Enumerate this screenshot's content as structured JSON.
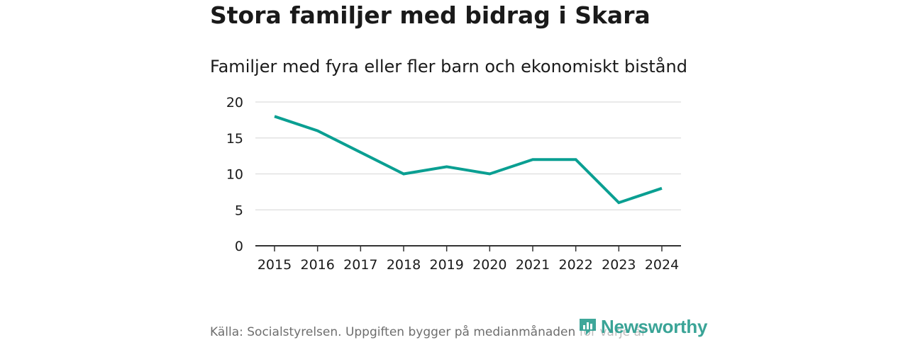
{
  "header": {
    "title": "Stora familjer med bidrag i Skara",
    "subtitle": "Familjer med fyra eller fler barn och ekonomiskt bistånd"
  },
  "footer": {
    "source": "Källa: Socialstyrelsen. Uppgiften bygger på medianmånaden för varje år"
  },
  "brand": {
    "name": "Newsworthy",
    "color": "#2a9d8f"
  },
  "colors": {
    "line": "#0a9f92",
    "grid": "#dddddd",
    "axis": "#333333"
  },
  "chart_data": {
    "type": "line",
    "title": "Stora familjer med bidrag i Skara",
    "subtitle": "Familjer med fyra eller fler barn och ekonomiskt bistånd",
    "xlabel": "",
    "ylabel": "",
    "categories": [
      "2015",
      "2016",
      "2017",
      "2018",
      "2019",
      "2020",
      "2021",
      "2022",
      "2023",
      "2024"
    ],
    "series": [
      {
        "name": "Familjer med fyra eller fler barn och ekonomiskt bistånd",
        "values": [
          18,
          16,
          13,
          10,
          11,
          10,
          12,
          12,
          6,
          8
        ]
      }
    ],
    "ylim": [
      0,
      20
    ],
    "yticks": [
      0,
      5,
      10,
      15,
      20
    ],
    "grid": true,
    "legend": "none"
  }
}
